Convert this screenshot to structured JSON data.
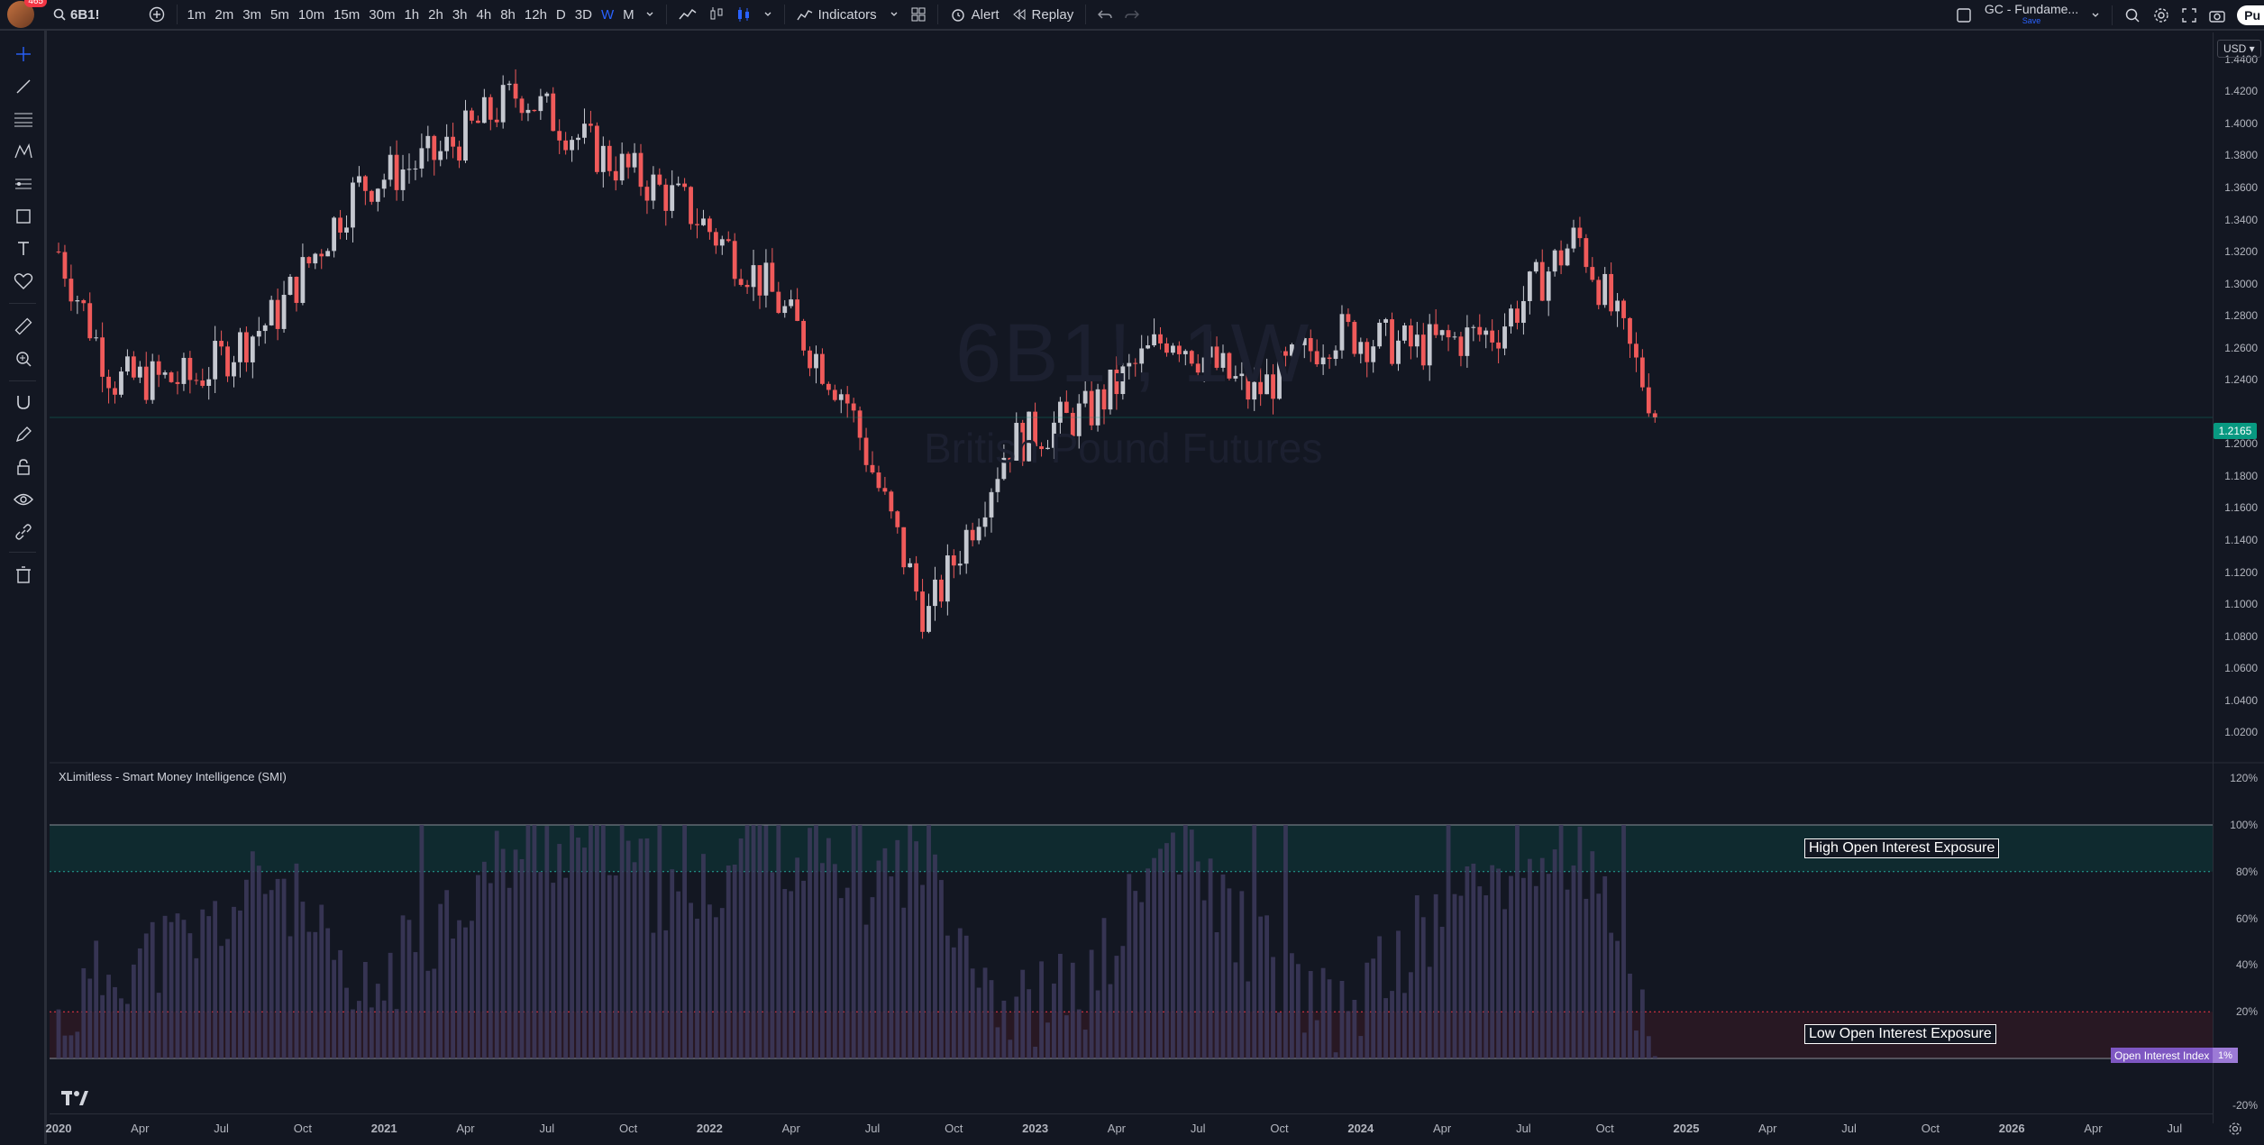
{
  "topbar": {
    "notification_count": "465",
    "symbol": "6B1!",
    "timeframes": [
      "1m",
      "2m",
      "3m",
      "5m",
      "10m",
      "15m",
      "30m",
      "1h",
      "2h",
      "3h",
      "4h",
      "8h",
      "12h",
      "D",
      "3D",
      "W",
      "M"
    ],
    "active_timeframe": "W",
    "indicators_label": "Indicators",
    "alert_label": "Alert",
    "replay_label": "Replay",
    "layout_name": "GC - Fundame...",
    "layout_sub": "Save",
    "publish_label": "Pu"
  },
  "watermark": {
    "symbol": "6B1!, 1W",
    "description": "British Pound Futures"
  },
  "price_axis": {
    "currency": "USD",
    "labels": [
      "1.4400",
      "1.4200",
      "1.4000",
      "1.3800",
      "1.3600",
      "1.3400",
      "1.3200",
      "1.3000",
      "1.2800",
      "1.2600",
      "1.2400",
      "1.2000",
      "1.1800",
      "1.1600",
      "1.1400",
      "1.1200",
      "1.1000",
      "1.0800",
      "1.0600",
      "1.0400",
      "1.0200"
    ],
    "last_price": "1.2165"
  },
  "indicator": {
    "title": "XLimitless - Smart Money Intelligence (SMI)",
    "high_label": "High Open Interest Exposure",
    "low_label": "Low Open Interest Exposure",
    "series_name": "Open Interest Index",
    "series_value": "1%",
    "axis_labels": [
      "120%",
      "100%",
      "80%",
      "60%",
      "40%",
      "20%",
      "-20%"
    ]
  },
  "time_axis": {
    "labels": [
      "2020",
      "Apr",
      "Jul",
      "Oct",
      "2021",
      "Apr",
      "Jul",
      "Oct",
      "2022",
      "Apr",
      "Jul",
      "Oct",
      "2023",
      "Apr",
      "Jul",
      "Oct",
      "2024",
      "Apr",
      "Jul",
      "Oct",
      "2025",
      "Apr",
      "Jul",
      "Oct",
      "2026",
      "Apr",
      "Jul"
    ]
  },
  "colors": {
    "up": "#c5c8d0",
    "down": "#f05a5a",
    "bg": "#131722",
    "oi_bar": "#3d3a5c",
    "accent": "#2962ff",
    "last_price": "#089981"
  },
  "chart_data": [
    {
      "type": "candlestick",
      "series_name": "6B1!",
      "timeframe": "1W",
      "x_range": [
        "2020-01",
        "2026-07"
      ],
      "ylim": [
        1.01,
        1.45
      ],
      "x": [
        "2020-01",
        "2020-03",
        "2020-06",
        "2020-09",
        "2020-12",
        "2021-03",
        "2021-06",
        "2021-09",
        "2021-12",
        "2022-03",
        "2022-06",
        "2022-09",
        "2022-12",
        "2023-03",
        "2023-06",
        "2023-09",
        "2023-12",
        "2024-03",
        "2024-06",
        "2024-09",
        "2024-12"
      ],
      "close": [
        1.32,
        1.24,
        1.24,
        1.28,
        1.36,
        1.38,
        1.42,
        1.38,
        1.35,
        1.3,
        1.23,
        1.09,
        1.2,
        1.22,
        1.27,
        1.23,
        1.27,
        1.26,
        1.27,
        1.33,
        1.2165
      ],
      "last_price": 1.2165
    },
    {
      "type": "bar",
      "series_name": "Open Interest Index",
      "ylim": [
        -20,
        120
      ],
      "thresholds": [
        20,
        80
      ],
      "x": [
        "2020-01",
        "2020-03",
        "2020-06",
        "2020-09",
        "2020-12",
        "2021-03",
        "2021-06",
        "2021-09",
        "2021-12",
        "2022-03",
        "2022-06",
        "2022-09",
        "2022-12",
        "2023-03",
        "2023-06",
        "2023-09",
        "2023-12",
        "2024-03",
        "2024-06",
        "2024-09",
        "2024-12"
      ],
      "values": [
        15,
        40,
        50,
        80,
        20,
        60,
        90,
        95,
        60,
        100,
        70,
        90,
        20,
        30,
        95,
        50,
        15,
        50,
        80,
        90,
        1
      ]
    }
  ]
}
